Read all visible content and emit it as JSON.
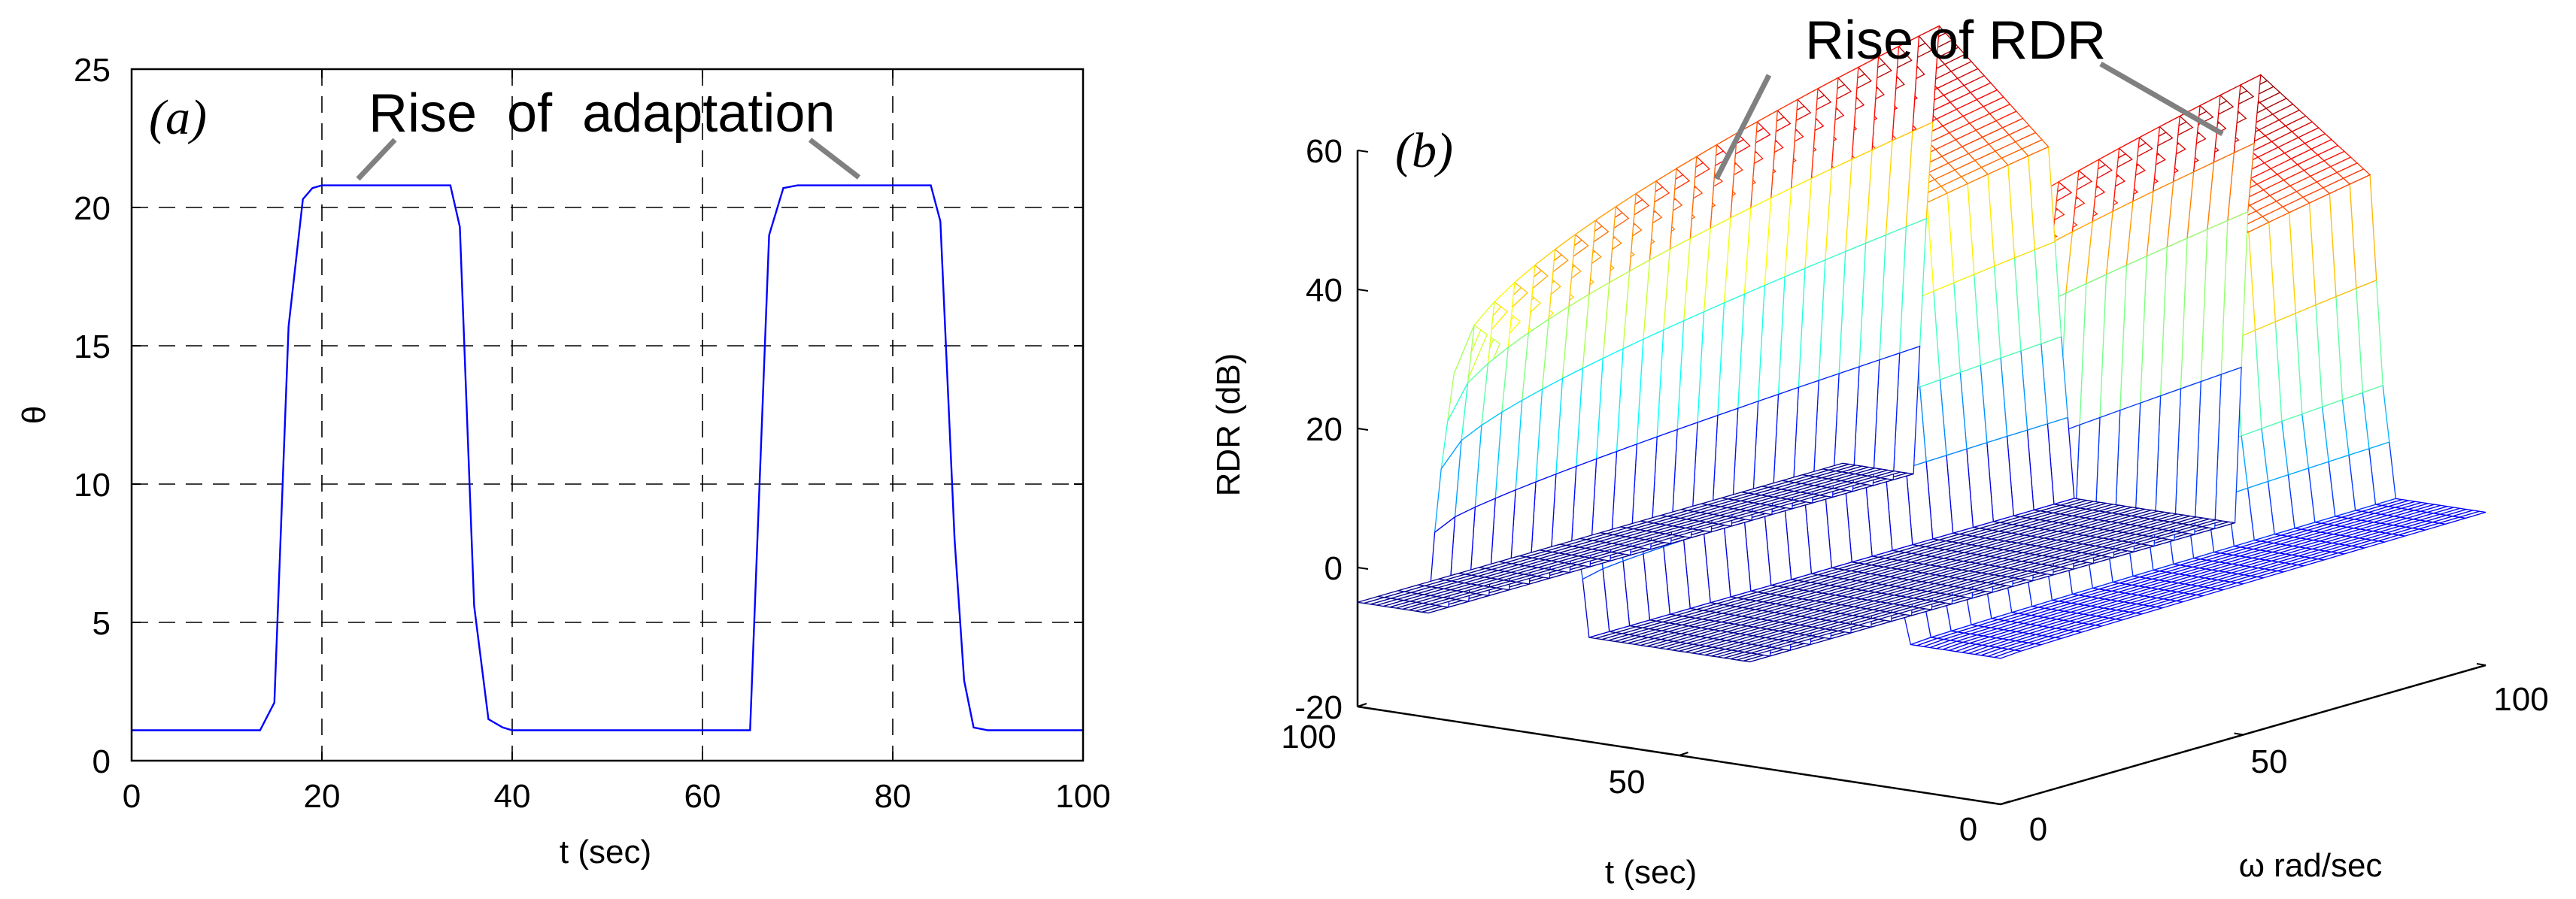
{
  "chart_data": [
    {
      "type": "line",
      "panel_label": "(a)",
      "xlabel": "t (sec)",
      "ylabel": "θ",
      "xlim": [
        0,
        100
      ],
      "ylim": [
        0,
        25
      ],
      "xticks": [
        0,
        20,
        40,
        60,
        80,
        100
      ],
      "yticks": [
        0,
        5,
        10,
        15,
        20,
        25
      ],
      "grid": true,
      "annotation": "Rise  of  adaptation",
      "series": [
        {
          "name": "θ",
          "color": "#0000ff",
          "x": [
            0,
            13.5,
            15,
            16.5,
            18,
            19,
            20,
            22,
            30,
            33.5,
            34.5,
            36,
            37.5,
            39,
            40,
            42,
            62,
            65,
            67,
            68.5,
            70,
            72,
            80,
            84,
            85,
            86.5,
            87.5,
            88.5,
            90,
            95,
            100
          ],
          "y": [
            1.1,
            1.1,
            2.1,
            15.7,
            20.3,
            20.7,
            20.8,
            20.8,
            20.8,
            20.8,
            19.3,
            5.6,
            1.5,
            1.2,
            1.1,
            1.1,
            1.1,
            1.1,
            19.0,
            20.7,
            20.8,
            20.8,
            20.8,
            20.8,
            19.5,
            8.0,
            2.9,
            1.2,
            1.1,
            1.1,
            1.1
          ]
        }
      ]
    },
    {
      "type": "surface",
      "panel_label": "(b)",
      "zlabel": "RDR (dB)",
      "xlabel": "t (sec)",
      "ylabel": "ω rad/sec",
      "zlim": [
        -20,
        60
      ],
      "zticks": [
        -20,
        0,
        20,
        40,
        60
      ],
      "t_ticks": [
        100,
        50,
        0
      ],
      "w_ticks": [
        0,
        50,
        100
      ],
      "annotation": "Rise of RDR",
      "surface_profile": {
        "t": [
          0,
          14,
          16,
          18,
          35,
          37,
          39,
          64,
          66,
          68,
          85,
          87,
          89,
          100
        ],
        "rdr_at_w_max": [
          2,
          2,
          18,
          48,
          60,
          40,
          -5,
          -5,
          18,
          45,
          60,
          32,
          -5,
          -5
        ],
        "colormap": "jet"
      }
    }
  ]
}
